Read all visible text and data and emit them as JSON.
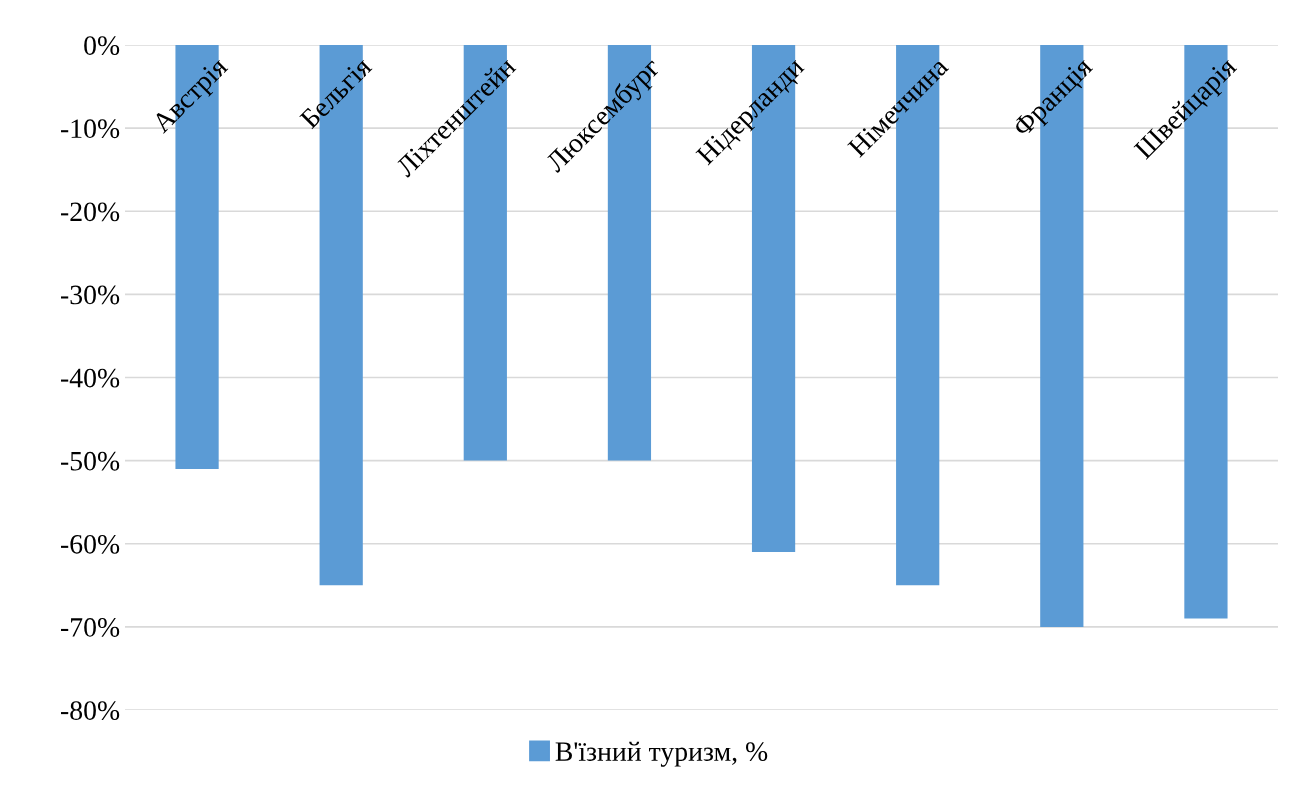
{
  "chart_data": {
    "type": "bar",
    "categories": [
      "Австрія",
      "Бельгія",
      "Ліхтенштейн",
      "Люксембург",
      "Нідерланди",
      "Німеччина",
      "Франція",
      "Швейцарія"
    ],
    "series": [
      {
        "name": "В'їзний туризм, %",
        "color": "#5b9bd5",
        "values": [
          -51,
          -65,
          -50,
          -50,
          -61,
          -65,
          -70,
          -69
        ]
      }
    ],
    "ylim": [
      -80,
      0
    ],
    "yticks": [
      {
        "value": 0,
        "label": "0%"
      },
      {
        "value": -10,
        "label": "-10%"
      },
      {
        "value": -20,
        "label": "-20%"
      },
      {
        "value": -30,
        "label": "-30%"
      },
      {
        "value": -40,
        "label": "-40%"
      },
      {
        "value": -50,
        "label": "-50%"
      },
      {
        "value": -60,
        "label": "-60%"
      },
      {
        "value": -70,
        "label": "-70%"
      },
      {
        "value": -80,
        "label": "-80%"
      }
    ],
    "grid": "y",
    "legend": "bottom"
  }
}
